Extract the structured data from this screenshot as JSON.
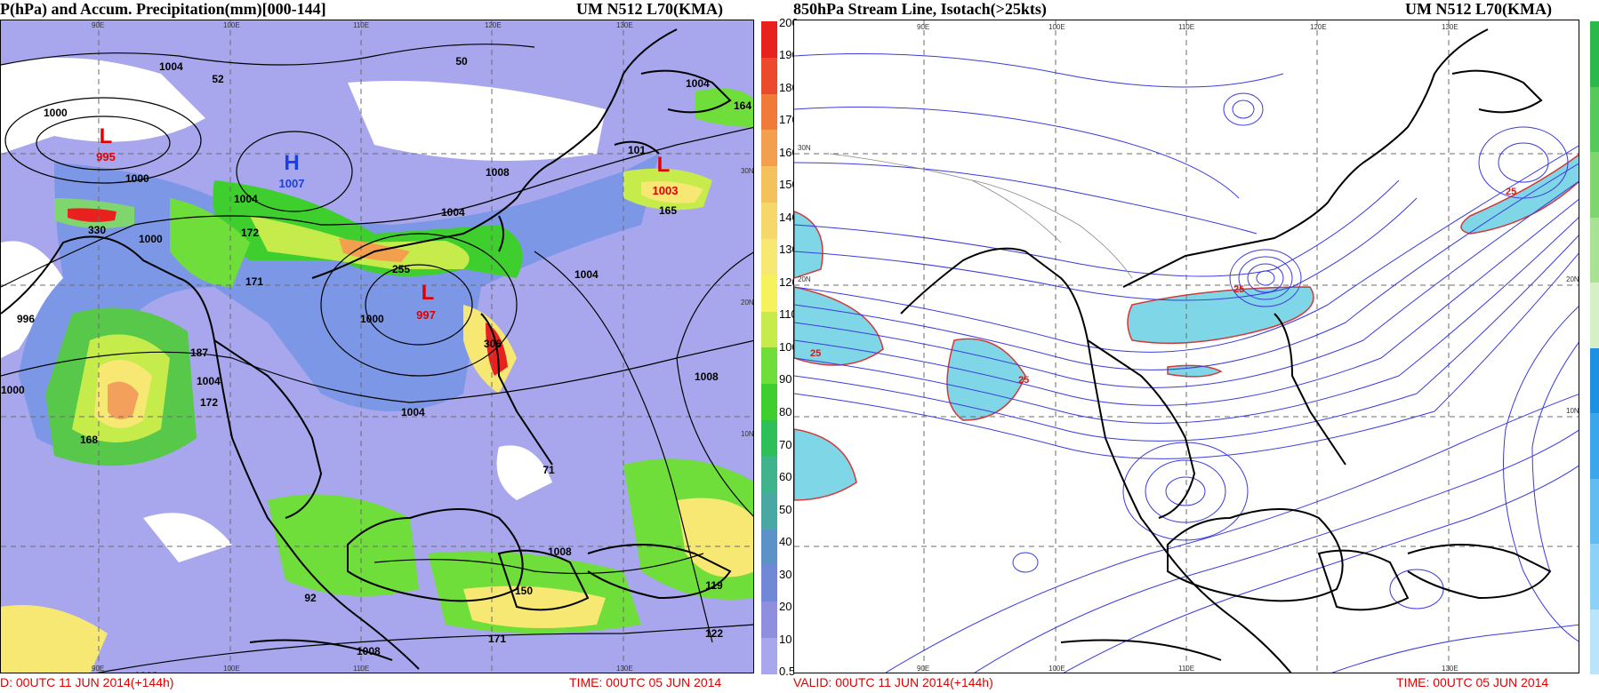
{
  "left_panel": {
    "title": "P(hPa) and Accum. Precipitation(mm)[000-144]",
    "model": "UM N512 L70(KMA)",
    "valid": "D: 00UTC 11 JUN 2014(+144h)",
    "time": "TIME: 00UTC 05 JUN 2014",
    "pressure_centers": [
      {
        "type": "L",
        "value": "995"
      },
      {
        "type": "H",
        "value": "1007"
      },
      {
        "type": "L",
        "value": "997"
      },
      {
        "type": "L",
        "value": "1003"
      }
    ],
    "isobar_labels": [
      "1000",
      "1004",
      "1000",
      "1000",
      "996",
      "1000",
      "1004",
      "1004",
      "1008",
      "1004",
      "1000",
      "1004",
      "1008",
      "1008",
      "1008",
      "1004",
      "1008",
      "1004"
    ],
    "precip_labels": [
      "52",
      "50",
      "164",
      "101",
      "165",
      "330",
      "172",
      "171",
      "255",
      "187",
      "172",
      "306",
      "168",
      "71",
      "150",
      "119",
      "122",
      "171",
      "92",
      "102"
    ],
    "lat_labels": [
      "30N",
      "20N",
      "10N"
    ],
    "lon_labels": [
      "90E",
      "100E",
      "110E",
      "120E",
      "130E"
    ],
    "colorbar_labels": [
      "200",
      "190",
      "180",
      "170",
      "160",
      "150",
      "140",
      "130",
      "120",
      "110",
      "100",
      "90",
      "80",
      "70",
      "60",
      "50",
      "40",
      "30",
      "20",
      "10",
      "0.5"
    ],
    "colorbar_colors": [
      "#e8211e",
      "#ec4a2c",
      "#f07a3a",
      "#f2a04d",
      "#f4c25d",
      "#f6d86a",
      "#f7e873",
      "#f5f25c",
      "#c6ec4b",
      "#6fdd3a",
      "#3ecf2f",
      "#2fbf5a",
      "#3fb48c",
      "#4aa8a4",
      "#5b92c8",
      "#7187d8",
      "#8f8fe0",
      "#a8a6ec"
    ]
  },
  "right_panel": {
    "title": "850hPa Stream Line, Isotach(>25kts)",
    "model": "UM N512 L70(KMA)",
    "valid": "VALID: 00UTC 11 JUN 2014(+144h)",
    "time": "TIME: 00UTC 05 JUN 2014",
    "isotach_labels": [
      "25",
      "25",
      "25",
      "25"
    ],
    "lat_labels": [
      "30N",
      "20N",
      "10N"
    ],
    "lon_labels": [
      "90E",
      "100E",
      "110E",
      "120E",
      "130E"
    ],
    "colorbar_colors": [
      "#2cb94a",
      "#55c95a",
      "#7fd66f",
      "#a9e293",
      "#d6efc6",
      "#1e90e0",
      "#3ba6ec",
      "#62bcf2",
      "#8ed1f6",
      "#b9e4fa"
    ]
  }
}
